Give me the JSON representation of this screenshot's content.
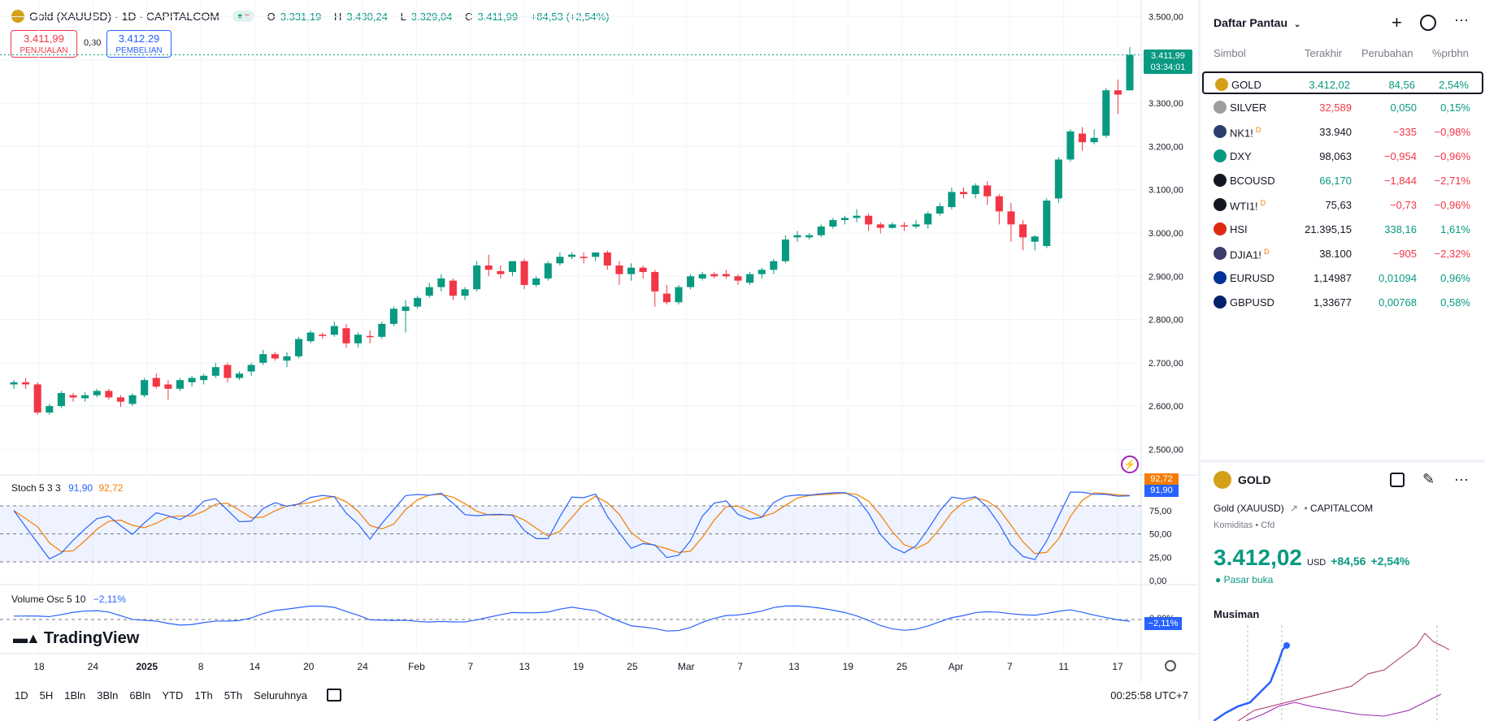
{
  "header": {
    "symbol_title": "Gold (XAUUSD) · 1D · CAPITALCOM",
    "open_label": "O",
    "open": "3.331,19",
    "high_label": "H",
    "high": "3.430,24",
    "low_label": "L",
    "low": "3.329,04",
    "close_label": "C",
    "close": "3.411,99",
    "change": "+84,53 (+2,54%)"
  },
  "trade": {
    "sell_price": "3.411,99",
    "sell_label": "PENJUALAN",
    "spread": "0,30",
    "buy_price": "3.412,29",
    "buy_label": "PEMBELIAN"
  },
  "price_axis": {
    "ticks": [
      "3.500,00",
      "3.400,00",
      "3.300,00",
      "3.200,00",
      "3.100,00",
      "3.000,00",
      "2.900,00",
      "2.800,00",
      "2.700,00",
      "2.600,00",
      "2.500,00"
    ],
    "last_price": "3.411,99",
    "countdown": "03:34:01"
  },
  "time_axis": [
    "18",
    "24",
    "2025",
    "8",
    "14",
    "20",
    "24",
    "Feb",
    "7",
    "13",
    "19",
    "25",
    "Mar",
    "7",
    "13",
    "19",
    "25",
    "Apr",
    "7",
    "11",
    "17"
  ],
  "stoch": {
    "label": "Stoch 5 3 3",
    "k": "91,90",
    "d": "92,72",
    "ticks": [
      "75,00",
      "50,00",
      "25,00",
      "0,00"
    ],
    "badge_d": "92,72",
    "badge_k": "91,90"
  },
  "volume_osc": {
    "label": "Volume Osc 5 10",
    "value": "−2,11%",
    "tick": "0,00%",
    "badge": "−2,11%"
  },
  "branding": "TradingView",
  "bottom_bar": {
    "ranges": [
      "1D",
      "5H",
      "1Bln",
      "3Bln",
      "6Bln",
      "YTD",
      "1Th",
      "5Th",
      "Seluruhnya"
    ],
    "clock": "00:25:58 UTC+7"
  },
  "watchlist": {
    "title": "Daftar Pantau",
    "columns": [
      "Simbol",
      "Terakhir",
      "Perubahan",
      "%prbhn"
    ],
    "rows": [
      {
        "symbol": "GOLD",
        "last": "3.412,02",
        "change": "84,56",
        "pct": "2,54%",
        "dir": "up",
        "icon": "gold-icon",
        "color": "#d4a017"
      },
      {
        "symbol": "SILVER",
        "last": "32,589",
        "change": "0,050",
        "pct": "0,15%",
        "dir": "mixed",
        "icon": "silver-icon",
        "color": "#9e9e9e"
      },
      {
        "symbol": "NK1!",
        "last": "33.940",
        "change": "−335",
        "pct": "−0,98%",
        "dir": "down",
        "icon": "nikkei-icon",
        "color": "#2a3f6b",
        "flag": "D"
      },
      {
        "symbol": "DXY",
        "last": "98,063",
        "change": "−0,954",
        "pct": "−0,96%",
        "dir": "down",
        "icon": "dollar-icon",
        "color": "#089981"
      },
      {
        "symbol": "BCOUSD",
        "last": "66,170",
        "change": "−1,844",
        "pct": "−2,71%",
        "dir": "downg",
        "icon": "oil-drop-icon",
        "color": "#131722"
      },
      {
        "symbol": "WTI1!",
        "last": "75,63",
        "change": "−0,73",
        "pct": "−0,96%",
        "dir": "down",
        "icon": "oil-drop-icon",
        "color": "#131722",
        "flag": "D"
      },
      {
        "symbol": "HSI",
        "last": "21.395,15",
        "change": "338,16",
        "pct": "1,61%",
        "dir": "up2",
        "icon": "hk-flag-icon",
        "color": "#de2910"
      },
      {
        "symbol": "DJIA1!",
        "last": "38.100",
        "change": "−905",
        "pct": "−2,32%",
        "dir": "down",
        "icon": "us-flag-icon",
        "color": "#3c3b6e",
        "flag": "D"
      },
      {
        "symbol": "EURUSD",
        "last": "1,14987",
        "change": "0,01094",
        "pct": "0,96%",
        "dir": "up2",
        "icon": "eu-flag-icon",
        "color": "#003399"
      },
      {
        "symbol": "GBPUSD",
        "last": "1,33677",
        "change": "0,00768",
        "pct": "0,58%",
        "dir": "up2",
        "icon": "uk-flag-icon",
        "color": "#012169"
      }
    ]
  },
  "detail": {
    "symbol": "GOLD",
    "full_name": "Gold (XAUUSD)",
    "exchange": "CAPITALCOM",
    "category": "Komiditas • Cfd",
    "price": "3.412,02",
    "currency": "USD",
    "change": "+84,56",
    "change_pct": "+2,54%",
    "market_status": "Pasar buka",
    "seasonal_title": "Musiman"
  },
  "colors": {
    "up": "#089981",
    "down": "#f23645",
    "accent": "#2962ff",
    "stoch_k": "#2962ff",
    "stoch_d": "#f57c00"
  },
  "chart_data": {
    "type": "candlestick",
    "ylim": [
      2450,
      3520
    ],
    "candles": [
      [
        2650,
        2660,
        2640,
        2655
      ],
      [
        2655,
        2665,
        2640,
        2650
      ],
      [
        2650,
        2655,
        2580,
        2585
      ],
      [
        2585,
        2605,
        2580,
        2600
      ],
      [
        2600,
        2635,
        2595,
        2630
      ],
      [
        2625,
        2630,
        2610,
        2620
      ],
      [
        2618,
        2632,
        2610,
        2625
      ],
      [
        2625,
        2640,
        2620,
        2635
      ],
      [
        2635,
        2640,
        2615,
        2620
      ],
      [
        2620,
        2625,
        2598,
        2610
      ],
      [
        2605,
        2630,
        2600,
        2625
      ],
      [
        2625,
        2665,
        2620,
        2660
      ],
      [
        2665,
        2675,
        2640,
        2645
      ],
      [
        2650,
        2660,
        2615,
        2640
      ],
      [
        2640,
        2665,
        2635,
        2660
      ],
      [
        2655,
        2670,
        2645,
        2665
      ],
      [
        2660,
        2675,
        2650,
        2670
      ],
      [
        2670,
        2700,
        2665,
        2690
      ],
      [
        2695,
        2700,
        2655,
        2665
      ],
      [
        2665,
        2680,
        2660,
        2675
      ],
      [
        2680,
        2700,
        2670,
        2695
      ],
      [
        2700,
        2730,
        2695,
        2720
      ],
      [
        2720,
        2725,
        2705,
        2710
      ],
      [
        2705,
        2725,
        2690,
        2715
      ],
      [
        2715,
        2760,
        2710,
        2755
      ],
      [
        2750,
        2775,
        2745,
        2770
      ],
      [
        2765,
        2770,
        2755,
        2762
      ],
      [
        2765,
        2795,
        2760,
        2785
      ],
      [
        2780,
        2790,
        2735,
        2745
      ],
      [
        2745,
        2770,
        2735,
        2765
      ],
      [
        2762,
        2775,
        2745,
        2760
      ],
      [
        2760,
        2795,
        2755,
        2790
      ],
      [
        2790,
        2830,
        2785,
        2825
      ],
      [
        2820,
        2845,
        2770,
        2830
      ],
      [
        2830,
        2855,
        2825,
        2850
      ],
      [
        2855,
        2885,
        2850,
        2875
      ],
      [
        2875,
        2905,
        2865,
        2895
      ],
      [
        2890,
        2895,
        2845,
        2855
      ],
      [
        2855,
        2875,
        2845,
        2870
      ],
      [
        2870,
        2935,
        2865,
        2925
      ],
      [
        2925,
        2950,
        2900,
        2915
      ],
      [
        2912,
        2925,
        2895,
        2905
      ],
      [
        2910,
        2935,
        2900,
        2935
      ],
      [
        2935,
        2940,
        2870,
        2880
      ],
      [
        2880,
        2900,
        2875,
        2895
      ],
      [
        2895,
        2935,
        2890,
        2930
      ],
      [
        2930,
        2955,
        2925,
        2945
      ],
      [
        2945,
        2955,
        2940,
        2950
      ],
      [
        2945,
        2955,
        2930,
        2942
      ],
      [
        2945,
        2955,
        2935,
        2955
      ],
      [
        2955,
        2960,
        2915,
        2925
      ],
      [
        2925,
        2935,
        2880,
        2905
      ],
      [
        2905,
        2930,
        2890,
        2920
      ],
      [
        2920,
        2925,
        2895,
        2910
      ],
      [
        2910,
        2915,
        2830,
        2865
      ],
      [
        2860,
        2880,
        2835,
        2840
      ],
      [
        2840,
        2880,
        2835,
        2875
      ],
      [
        2875,
        2905,
        2870,
        2900
      ],
      [
        2895,
        2910,
        2890,
        2905
      ],
      [
        2905,
        2910,
        2895,
        2900
      ],
      [
        2905,
        2915,
        2895,
        2900
      ],
      [
        2900,
        2905,
        2880,
        2890
      ],
      [
        2885,
        2910,
        2880,
        2905
      ],
      [
        2905,
        2920,
        2895,
        2915
      ],
      [
        2915,
        2940,
        2905,
        2935
      ],
      [
        2935,
        2995,
        2930,
        2985
      ],
      [
        2990,
        3005,
        2980,
        2995
      ],
      [
        2990,
        3000,
        2985,
        2995
      ],
      [
        2995,
        3020,
        2990,
        3015
      ],
      [
        3015,
        3035,
        3010,
        3030
      ],
      [
        3030,
        3040,
        3020,
        3035
      ],
      [
        3035,
        3055,
        3025,
        3040
      ],
      [
        3040,
        3045,
        3005,
        3020
      ],
      [
        3020,
        3025,
        2999,
        3012
      ],
      [
        3012,
        3025,
        3010,
        3020
      ],
      [
        3018,
        3025,
        3005,
        3015
      ],
      [
        3015,
        3030,
        3010,
        3020
      ],
      [
        3020,
        3050,
        3010,
        3045
      ],
      [
        3045,
        3070,
        3040,
        3062
      ],
      [
        3060,
        3105,
        3055,
        3095
      ],
      [
        3095,
        3105,
        3080,
        3090
      ],
      [
        3090,
        3115,
        3080,
        3110
      ],
      [
        3110,
        3120,
        3065,
        3085
      ],
      [
        3085,
        3090,
        3020,
        3050
      ],
      [
        3050,
        3070,
        2980,
        3020
      ],
      [
        3020,
        3030,
        2960,
        2990
      ],
      [
        2980,
        2995,
        2960,
        2992
      ],
      [
        2970,
        3080,
        2965,
        3075
      ],
      [
        3080,
        3175,
        3070,
        3170
      ],
      [
        3170,
        3240,
        3165,
        3235
      ],
      [
        3230,
        3245,
        3190,
        3210
      ],
      [
        3210,
        3240,
        3205,
        3220
      ],
      [
        3225,
        3335,
        3220,
        3330
      ],
      [
        3330,
        3355,
        3275,
        3320
      ],
      [
        3330,
        3430,
        3329,
        3412
      ]
    ]
  }
}
